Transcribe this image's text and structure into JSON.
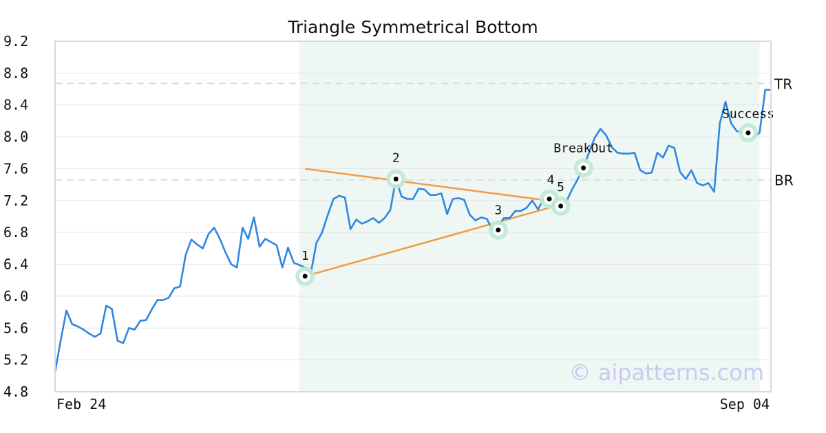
{
  "chart_data": {
    "type": "line",
    "title": "Triangle Symmetrical Bottom",
    "xlabel": "",
    "ylabel": "",
    "ylim": [
      4.8,
      9.2
    ],
    "y_ticks": [
      "9.2",
      "8.8",
      "8.4",
      "8.0",
      "7.6",
      "7.2",
      "6.8",
      "6.4",
      "6.0",
      "5.6",
      "5.2",
      "4.8"
    ],
    "x_tick_labels": [
      "Feb 24",
      "Sep 04"
    ],
    "grid": true,
    "series": [
      {
        "color": "#2f86e0",
        "values": [
          5.05,
          5.45,
          5.82,
          5.65,
          5.62,
          5.58,
          5.53,
          5.49,
          5.53,
          5.88,
          5.84,
          5.44,
          5.41,
          5.6,
          5.58,
          5.69,
          5.7,
          5.83,
          5.95,
          5.95,
          5.98,
          6.1,
          6.12,
          6.52,
          6.71,
          6.65,
          6.6,
          6.78,
          6.86,
          6.72,
          6.55,
          6.4,
          6.36,
          6.86,
          6.72,
          6.99,
          6.62,
          6.72,
          6.68,
          6.64,
          6.36,
          6.61,
          6.42,
          6.39,
          6.36,
          6.28,
          6.67,
          6.8,
          7.02,
          7.22,
          7.26,
          7.24,
          6.84,
          6.96,
          6.91,
          6.94,
          6.98,
          6.92,
          6.98,
          7.08,
          7.47,
          7.25,
          7.22,
          7.22,
          7.35,
          7.34,
          7.27,
          7.27,
          7.29,
          7.03,
          7.22,
          7.23,
          7.21,
          7.02,
          6.95,
          6.99,
          6.97,
          6.83,
          6.88,
          6.98,
          6.98,
          7.07,
          7.07,
          7.11,
          7.2,
          7.09,
          7.22,
          7.19,
          7.13,
          7.18,
          7.19,
          7.34,
          7.47,
          7.61,
          7.81,
          7.99,
          8.1,
          8.02,
          7.87,
          7.8,
          7.79,
          7.79,
          7.8,
          7.58,
          7.54,
          7.55,
          7.8,
          7.74,
          7.89,
          7.86,
          7.56,
          7.47,
          7.58,
          7.42,
          7.39,
          7.42,
          7.31,
          8.17,
          8.44,
          8.17,
          8.07,
          8.06,
          7.99,
          8.0,
          8.05,
          8.59,
          8.59
        ]
      }
    ],
    "pattern_region": {
      "x_start": 43,
      "x_end": 124,
      "color": "#eef7f3"
    },
    "trendlines": [
      {
        "color": "#f39a45",
        "points": [
          [
            44,
            7.6
          ],
          [
            90,
            7.17
          ]
        ]
      },
      {
        "color": "#f39a45",
        "points": [
          [
            44,
            6.25
          ],
          [
            90,
            7.17
          ]
        ]
      }
    ],
    "reference_lines": [
      {
        "label": "TR",
        "y": 8.67
      },
      {
        "label": "BR",
        "y": 7.46
      }
    ],
    "markers": [
      {
        "label": "1",
        "x": 44,
        "y": 6.25
      },
      {
        "label": "2",
        "x": 60,
        "y": 7.47
      },
      {
        "label": "3",
        "x": 78,
        "y": 6.83
      },
      {
        "label": "4",
        "x": 87,
        "y": 7.22
      },
      {
        "label": "5",
        "x": 89,
        "y": 7.13
      },
      {
        "label": "BreakOut",
        "x": 93,
        "y": 7.61
      },
      {
        "label": "Success",
        "x": 122,
        "y": 8.05
      }
    ]
  },
  "watermark": "© aipatterns.com"
}
